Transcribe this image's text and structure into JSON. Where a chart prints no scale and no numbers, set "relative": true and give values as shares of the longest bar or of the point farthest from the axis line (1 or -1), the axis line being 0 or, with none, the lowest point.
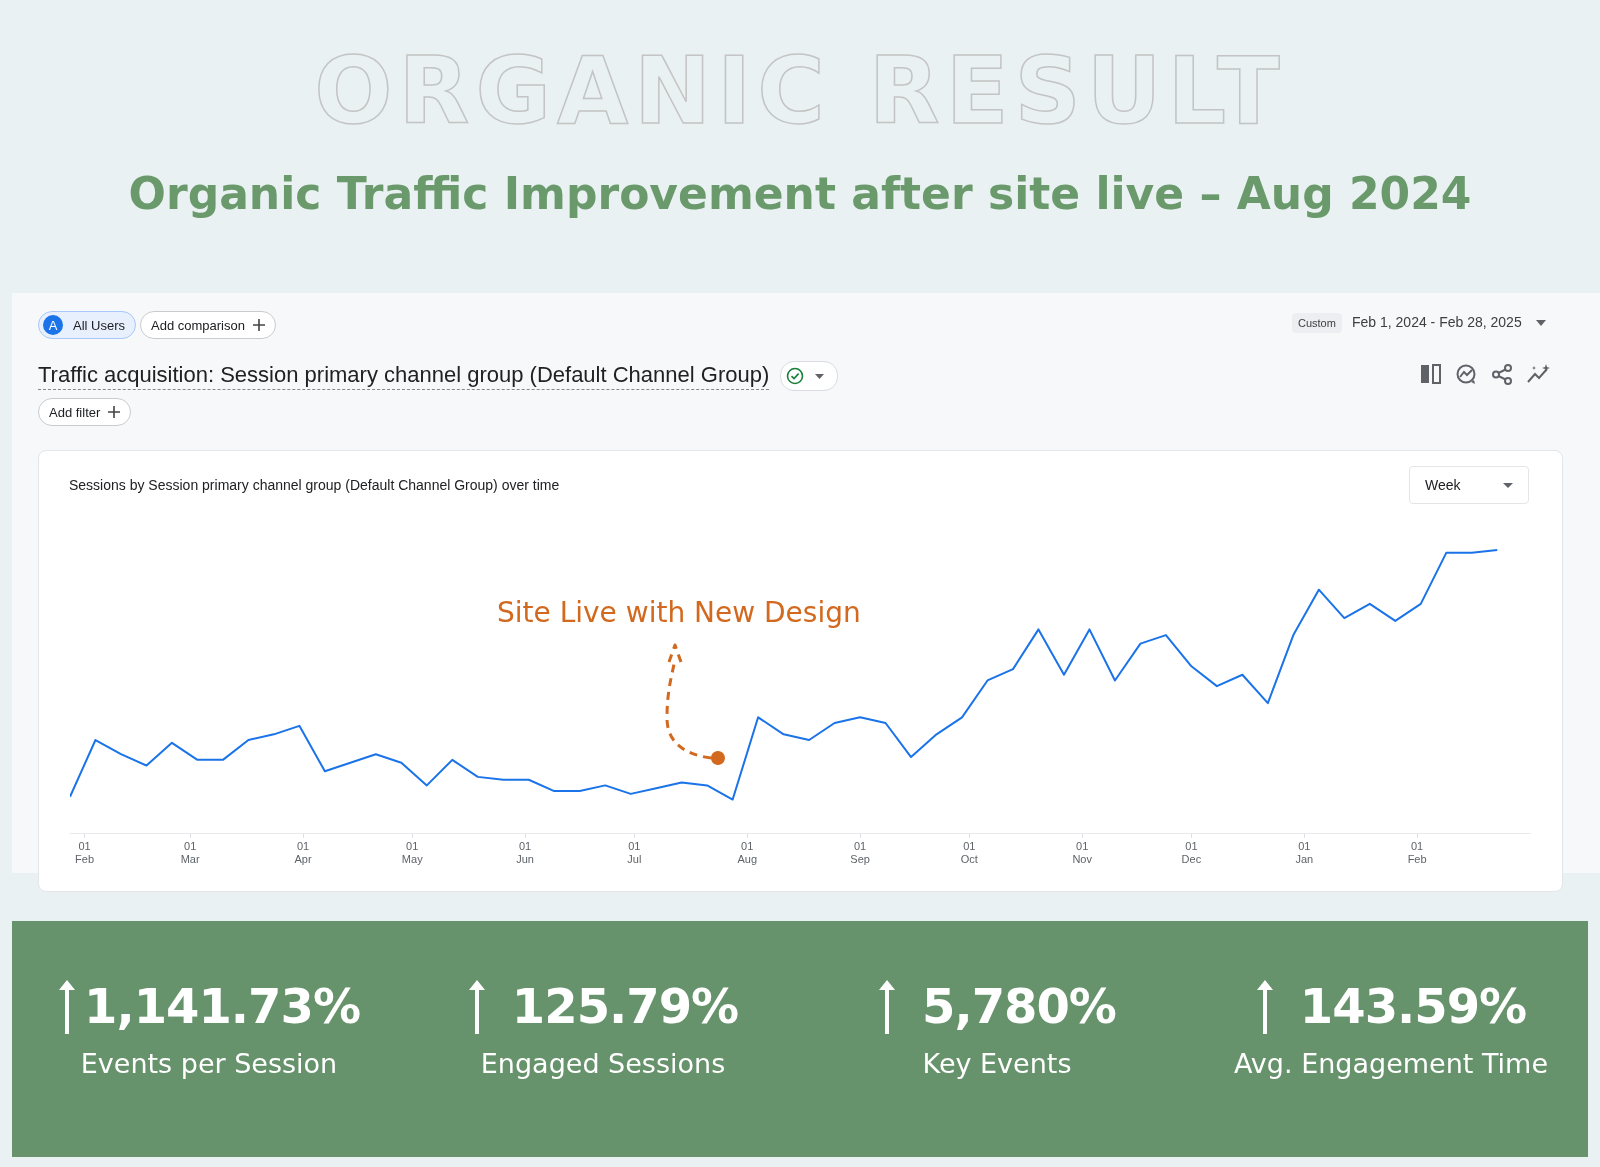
{
  "chart_data": {
    "type": "line",
    "title": "Sessions by Session primary channel group (Default Channel Group) over time",
    "relative": true,
    "marker": "none",
    "line_style": "solid",
    "x": [
      "2024-01-28",
      "2024-02-04",
      "2024-02-11",
      "2024-02-18",
      "2024-02-25",
      "2024-03-03",
      "2024-03-10",
      "2024-03-17",
      "2024-03-24",
      "2024-03-31",
      "2024-04-07",
      "2024-04-14",
      "2024-04-21",
      "2024-04-28",
      "2024-05-05",
      "2024-05-12",
      "2024-05-19",
      "2024-05-26",
      "2024-06-02",
      "2024-06-09",
      "2024-06-16",
      "2024-06-23",
      "2024-06-30",
      "2024-07-07",
      "2024-07-14",
      "2024-07-21",
      "2024-07-28",
      "2024-08-04",
      "2024-08-11",
      "2024-08-18",
      "2024-08-25",
      "2024-09-01",
      "2024-09-08",
      "2024-09-15",
      "2024-09-22",
      "2024-09-29",
      "2024-10-06",
      "2024-10-13",
      "2024-10-20",
      "2024-10-27",
      "2024-11-03",
      "2024-11-10",
      "2024-11-17",
      "2024-11-24",
      "2024-12-01",
      "2024-12-08",
      "2024-12-15",
      "2024-12-22",
      "2024-12-29",
      "2025-01-05",
      "2025-01-12",
      "2025-01-19",
      "2025-01-26",
      "2025-02-02",
      "2025-02-09",
      "2025-02-16",
      "2025-02-23"
    ],
    "series": [
      {
        "color": "#1a73e8",
        "values": [
          0.13,
          0.33,
          0.28,
          0.24,
          0.32,
          0.26,
          0.26,
          0.33,
          0.35,
          0.38,
          0.22,
          0.25,
          0.28,
          0.25,
          0.17,
          0.26,
          0.2,
          0.19,
          0.19,
          0.15,
          0.15,
          0.17,
          0.14,
          0.16,
          0.18,
          0.17,
          0.12,
          0.41,
          0.35,
          0.33,
          0.39,
          0.41,
          0.39,
          0.27,
          0.35,
          0.41,
          0.54,
          0.58,
          0.72,
          0.56,
          0.72,
          0.54,
          0.67,
          0.7,
          0.59,
          0.52,
          0.56,
          0.46,
          0.7,
          0.86,
          0.76,
          0.81,
          0.75,
          0.81,
          0.99,
          0.99,
          1
        ]
      }
    ],
    "xlim": [
      "2024-01-28",
      "2025-03-04"
    ],
    "xticks": [
      {
        "value": "2024-02-01",
        "label": "01 Feb"
      },
      {
        "value": "2024-03-01",
        "label": "01 Mar"
      },
      {
        "value": "2024-04-01",
        "label": "01 Apr"
      },
      {
        "value": "2024-05-01",
        "label": "01 May"
      },
      {
        "value": "2024-06-01",
        "label": "01 Jun"
      },
      {
        "value": "2024-07-01",
        "label": "01 Jul"
      },
      {
        "value": "2024-08-01",
        "label": "01 Aug"
      },
      {
        "value": "2024-09-01",
        "label": "01 Sep"
      },
      {
        "value": "2024-10-01",
        "label": "01 Oct"
      },
      {
        "value": "2024-11-01",
        "label": "01 Nov"
      },
      {
        "value": "2024-12-01",
        "label": "01 Dec"
      },
      {
        "value": "2025-01-01",
        "label": "01 Jan"
      },
      {
        "value": "2025-02-01",
        "label": "01 Feb"
      }
    ],
    "legend": false,
    "annotations": [
      "ORGANIC RESULT",
      "Organic Traffic Improvement after site live – Aug 2024",
      "A",
      "All Users",
      "Add comparison",
      "Custom",
      "Feb 1, 2024 - Feb 28, 2025",
      "Traffic acquisition: Session primary channel group (Default Channel Group)",
      "Add filter",
      "Week",
      "Site Live with New Design",
      "1,141.73%",
      "Events per Session",
      "125.79%",
      "Engaged Sessions",
      "5,780%",
      "Key Events",
      "143.59%",
      "Avg. Engagement Time"
    ]
  }
}
